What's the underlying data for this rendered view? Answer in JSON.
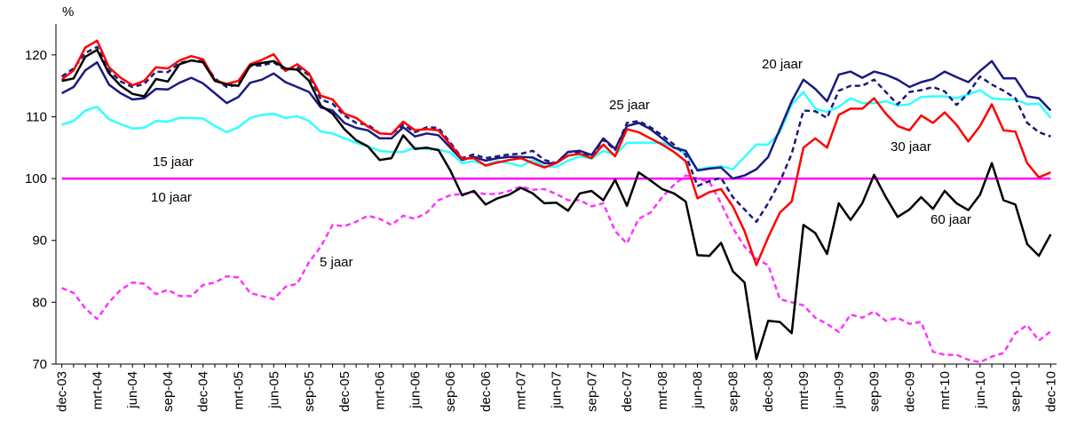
{
  "chart_data": {
    "type": "line",
    "y_label": "%",
    "categories": [
      "dec-03",
      null,
      null,
      "mrt-04",
      null,
      null,
      "jun-04",
      null,
      null,
      "sep-04",
      null,
      null,
      "dec-04",
      null,
      null,
      "mrt-05",
      null,
      null,
      "jun-05",
      null,
      null,
      "sep-05",
      null,
      null,
      "dec-05",
      null,
      null,
      "mrt-06",
      null,
      null,
      "jun-06",
      null,
      null,
      "sep-06",
      null,
      null,
      "dec-06",
      null,
      null,
      "mrt-07",
      null,
      null,
      "jun-07",
      null,
      null,
      "sep-07",
      null,
      null,
      "dec-07",
      null,
      null,
      "mrt-08",
      null,
      null,
      "jun-08",
      null,
      null,
      "sep-08",
      null,
      null,
      "dec-08",
      null,
      null,
      "mrt-09",
      null,
      null,
      "jun-09",
      null,
      null,
      "sep-09",
      null,
      null,
      "dec-09",
      null,
      null,
      "mrt-10",
      null,
      null,
      "jun-10",
      null,
      null,
      "sep-10",
      null,
      null,
      "dec-10"
    ],
    "ylim": [
      70,
      125
    ],
    "yticks": [
      70,
      80,
      90,
      100,
      110,
      120
    ],
    "grid": false,
    "series": [
      {
        "name": "5 jaar",
        "color": "#ff33ff",
        "dashed": true,
        "values": [
          82.3,
          81.5,
          79,
          77.3,
          80,
          82,
          83.2,
          83,
          81.3,
          82,
          81,
          81,
          82.8,
          83.2,
          84.2,
          84,
          81.5,
          81,
          80.5,
          82.5,
          83,
          86.5,
          89,
          92.5,
          92.3,
          93,
          94,
          93.5,
          92.5,
          94,
          93.5,
          94.5,
          96.5,
          97.3,
          97.5,
          97.8,
          97.5,
          97.5,
          98,
          98.7,
          98.2,
          98.3,
          97.5,
          96.5,
          96.5,
          95.5,
          96,
          91.5,
          89.5,
          93.5,
          94.5,
          97,
          99,
          100.5,
          100,
          99.5,
          96,
          92,
          89,
          87,
          86,
          80.5,
          80,
          79.5,
          77.5,
          76.5,
          75.2,
          78,
          77.5,
          78.5,
          77,
          77.5,
          76.5,
          76.8,
          72,
          71.5,
          71.5,
          70.7,
          70.3,
          71.2,
          71.8,
          75,
          76.3,
          73.8,
          75.3
        ]
      },
      {
        "name": "10 jaar",
        "color": "#ff00ff",
        "dashed": false,
        "values": [
          100,
          100,
          100,
          100,
          100,
          100,
          100,
          100,
          100,
          100,
          100,
          100,
          100,
          100,
          100,
          100,
          100,
          100,
          100,
          100,
          100,
          100,
          100,
          100,
          100,
          100,
          100,
          100,
          100,
          100,
          100,
          100,
          100,
          100,
          100,
          100,
          100,
          100,
          100,
          100,
          100,
          100,
          100,
          100,
          100,
          100,
          100,
          100,
          100,
          100,
          100,
          100,
          100,
          100,
          100,
          100,
          100,
          100,
          100,
          100,
          100,
          100,
          100,
          100,
          100,
          100,
          100,
          100,
          100,
          100,
          100,
          100,
          100,
          100,
          100,
          100,
          100,
          100,
          100,
          100,
          100,
          100,
          100,
          100,
          100
        ]
      },
      {
        "name": "15 jaar",
        "color": "#33ffff",
        "dashed": false,
        "values": [
          108.7,
          109.3,
          111,
          111.6,
          109.6,
          108.8,
          108.1,
          108.2,
          109.3,
          109.2,
          109.8,
          109.8,
          109.7,
          108.5,
          107.5,
          108.3,
          109.8,
          110.3,
          110.5,
          109.8,
          110.1,
          109.3,
          107.6,
          107.3,
          106.5,
          105.8,
          105.2,
          104.5,
          104.3,
          104.3,
          105,
          104.8,
          104.7,
          104.2,
          102.5,
          102.8,
          102.2,
          102.8,
          102.5,
          102,
          103,
          102,
          101.9,
          102.9,
          103.6,
          103.2,
          104.5,
          103.8,
          105.8,
          105.8,
          105.8,
          105.8,
          105,
          104,
          101.5,
          101.8,
          102,
          101.5,
          103.5,
          105.5,
          105.5,
          107.5,
          112,
          114,
          111.3,
          110.8,
          111.6,
          113,
          112.2,
          112.2,
          112.5,
          111.8,
          112,
          113.2,
          113.3,
          113.3,
          113,
          113.6,
          114.3,
          113,
          112.8,
          112.8,
          112,
          112.1,
          109.8
        ]
      },
      {
        "name": "20 jaar",
        "color": "#1a1a80",
        "dashed": false,
        "values": [
          113.8,
          114.8,
          117.5,
          118.8,
          115.2,
          113.8,
          112.8,
          113,
          114.5,
          114.4,
          115.5,
          116.3,
          115.4,
          113.8,
          112.2,
          113.2,
          115.5,
          116,
          117,
          115.6,
          114.8,
          114,
          111.5,
          111,
          109,
          108.2,
          107.8,
          106.5,
          106.5,
          108.3,
          106.8,
          107.3,
          107,
          105,
          103,
          103.5,
          102.9,
          103.3,
          103.5,
          103.5,
          103.4,
          102.5,
          102.5,
          104.3,
          104.5,
          103.8,
          106.5,
          104.8,
          108.5,
          109,
          108,
          106.5,
          105,
          104.5,
          101.3,
          101.6,
          101.8,
          100,
          100.5,
          101.5,
          103.5,
          108,
          112.5,
          116,
          114.5,
          112.5,
          116.8,
          117.3,
          116.3,
          117.3,
          116.8,
          116,
          114.8,
          115.6,
          116.1,
          117.3,
          116.4,
          115.6,
          117.4,
          119,
          116.2,
          116.2,
          113.3,
          113,
          111
        ]
      },
      {
        "name": "25 jaar",
        "color": "#1a1a80",
        "dashed": true,
        "values": [
          116.5,
          117.8,
          120.3,
          121.3,
          117.5,
          115.7,
          114.8,
          115.3,
          117.3,
          117.2,
          118.7,
          119.1,
          119,
          116.2,
          114.8,
          115.2,
          118.2,
          118.3,
          118.8,
          117.5,
          118,
          116.7,
          112.8,
          112.1,
          110.2,
          109,
          108.7,
          107.3,
          107.2,
          108.7,
          107.5,
          108.3,
          108.2,
          105.8,
          103.3,
          103.9,
          103.3,
          103.6,
          103.9,
          104,
          104.5,
          103,
          102.5,
          104.3,
          104.2,
          103.6,
          106.3,
          104.6,
          109,
          109.3,
          108.3,
          107,
          105.5,
          103.8,
          98.8,
          99.6,
          100.1,
          97,
          95,
          93,
          96,
          99.5,
          104,
          111,
          110.9,
          109.8,
          114.2,
          115,
          115,
          116,
          114,
          112,
          114,
          114.3,
          114.8,
          114.1,
          111.9,
          113.8,
          116.5,
          115.2,
          114.2,
          113,
          109,
          107.5,
          106.8
        ]
      },
      {
        "name": "30 jaar",
        "color": "#ff0000",
        "dashed": false,
        "values": [
          116,
          117.5,
          121.2,
          122.3,
          118,
          116.3,
          115.1,
          115.8,
          118,
          117.8,
          119.1,
          119.8,
          119.3,
          115.9,
          115.3,
          115.8,
          118.5,
          119.2,
          120.1,
          117.4,
          118.5,
          117,
          113.4,
          112.8,
          110.5,
          109.8,
          108.4,
          107.3,
          107.2,
          109.2,
          107.8,
          108,
          107.8,
          105.5,
          103.2,
          103.3,
          102.1,
          102.6,
          103,
          103.3,
          102.5,
          101.8,
          102.5,
          103.7,
          104,
          103.3,
          105.5,
          103.6,
          108,
          107.5,
          106.5,
          105.5,
          104.3,
          102.8,
          96.8,
          97.8,
          98.3,
          95.5,
          91.5,
          86,
          90.5,
          94.5,
          96.3,
          105,
          106.5,
          105,
          110.3,
          111.3,
          111.3,
          113,
          110.5,
          108.5,
          107.8,
          110.2,
          109,
          110.7,
          108.7,
          106,
          108.5,
          112,
          107.8,
          107.6,
          102.5,
          100.2,
          101
        ]
      },
      {
        "name": "60 jaar",
        "color": "#000000",
        "dashed": false,
        "values": [
          115.8,
          116.2,
          119.7,
          120.8,
          117,
          115,
          113.7,
          113.3,
          116.1,
          115.7,
          118.5,
          119.1,
          118.8,
          115.8,
          115.2,
          115,
          118.3,
          118.7,
          119,
          117.8,
          117.6,
          115.8,
          111.8,
          110.5,
          108,
          106.2,
          105.2,
          103,
          103.3,
          107,
          104.8,
          105,
          104.6,
          101.3,
          97.3,
          98,
          95.8,
          96.8,
          97.4,
          98.5,
          97.6,
          96,
          96.1,
          94.8,
          97.6,
          98,
          96.5,
          99.8,
          95.6,
          101,
          99.7,
          98.3,
          97.6,
          96.3,
          87.6,
          87.5,
          89.6,
          85,
          83.2,
          70.8,
          77,
          76.8,
          75,
          92.5,
          91.2,
          87.8,
          96,
          93.3,
          96,
          100.6,
          97,
          93.8,
          95,
          97,
          95.1,
          98,
          96,
          94.9,
          97.4,
          102.5,
          96.5,
          95.8,
          89.4,
          87.5,
          91
        ]
      }
    ]
  }
}
